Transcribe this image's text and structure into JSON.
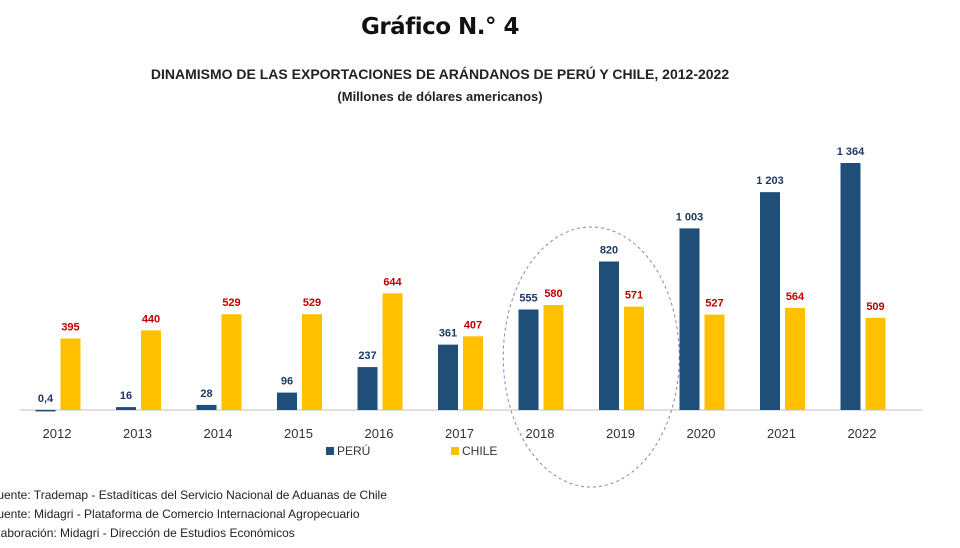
{
  "heading": "Gráfico N.° 4",
  "chart_data": {
    "type": "bar",
    "title": "DINAMISMO DE LAS EXPORTACIONES DE ARÁNDANOS DE PERÚ Y CHILE, 2012-2022",
    "subtitle": "(Millones de dólares americanos)",
    "categories": [
      "2012",
      "2013",
      "2014",
      "2015",
      "2016",
      "2017",
      "2018",
      "2019",
      "2020",
      "2021",
      "2022"
    ],
    "series": [
      {
        "name": "PERÚ",
        "color": "#1f4e79",
        "label_color": "#1f3864",
        "values": [
          0.4,
          16,
          28,
          96,
          237,
          361,
          555,
          820,
          1003,
          1203,
          1364
        ],
        "labels": [
          "0,4",
          "16",
          "28",
          "96",
          "237",
          "361",
          "555",
          "820",
          "1 003",
          "1 203",
          "1 364"
        ]
      },
      {
        "name": "CHILE",
        "color": "#ffc000",
        "label_color": "#c00000",
        "values": [
          395,
          440,
          529,
          529,
          644,
          407,
          580,
          571,
          527,
          564,
          509
        ],
        "labels": [
          "395",
          "440",
          "529",
          "529",
          "644",
          "407",
          "580",
          "571",
          "527",
          "564",
          "509"
        ]
      }
    ],
    "ylim": [
      0,
      1364
    ],
    "xlabel": "",
    "ylabel": "",
    "legend": "bottom-center",
    "annotation": "ellipse highlighting 2018-2019"
  },
  "sources": [
    "Fuente: Trademap - Estadíticas del Servicio Nacional de Aduanas de Chile",
    "Fuente: Midagri - Plataforma de Comercio Internacional Agropecuario",
    "Elaboración: Midagri - Dirección de Estudios Económicos"
  ]
}
